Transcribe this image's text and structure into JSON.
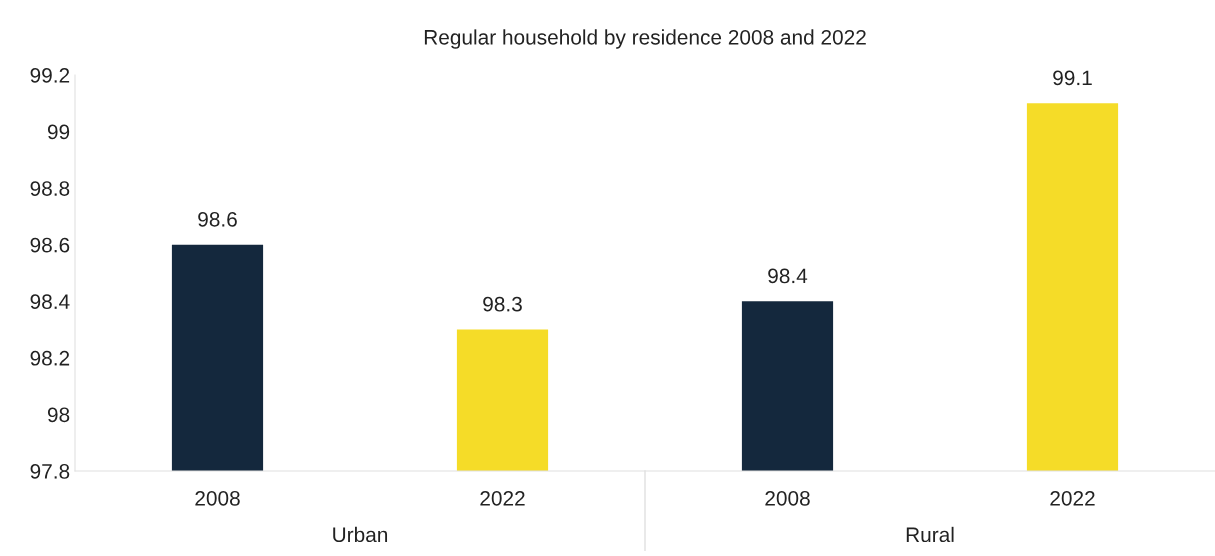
{
  "chart_data": {
    "type": "bar",
    "title": "Regular household by residence 2008 and 2022",
    "categories": [
      "2008",
      "2022",
      "2008",
      "2022"
    ],
    "values": [
      98.6,
      98.3,
      98.4,
      99.1
    ],
    "colors": [
      "#14283d",
      "#f5dc28",
      "#14283d",
      "#f5dc28"
    ],
    "ylim": [
      97.8,
      99.2
    ],
    "yticks": [
      97.8,
      98,
      98.2,
      98.4,
      98.6,
      98.8,
      99,
      99.2
    ],
    "data_labels": true,
    "grid": false,
    "legend": false,
    "annotations": [
      "Urban",
      "Rural"
    ]
  }
}
